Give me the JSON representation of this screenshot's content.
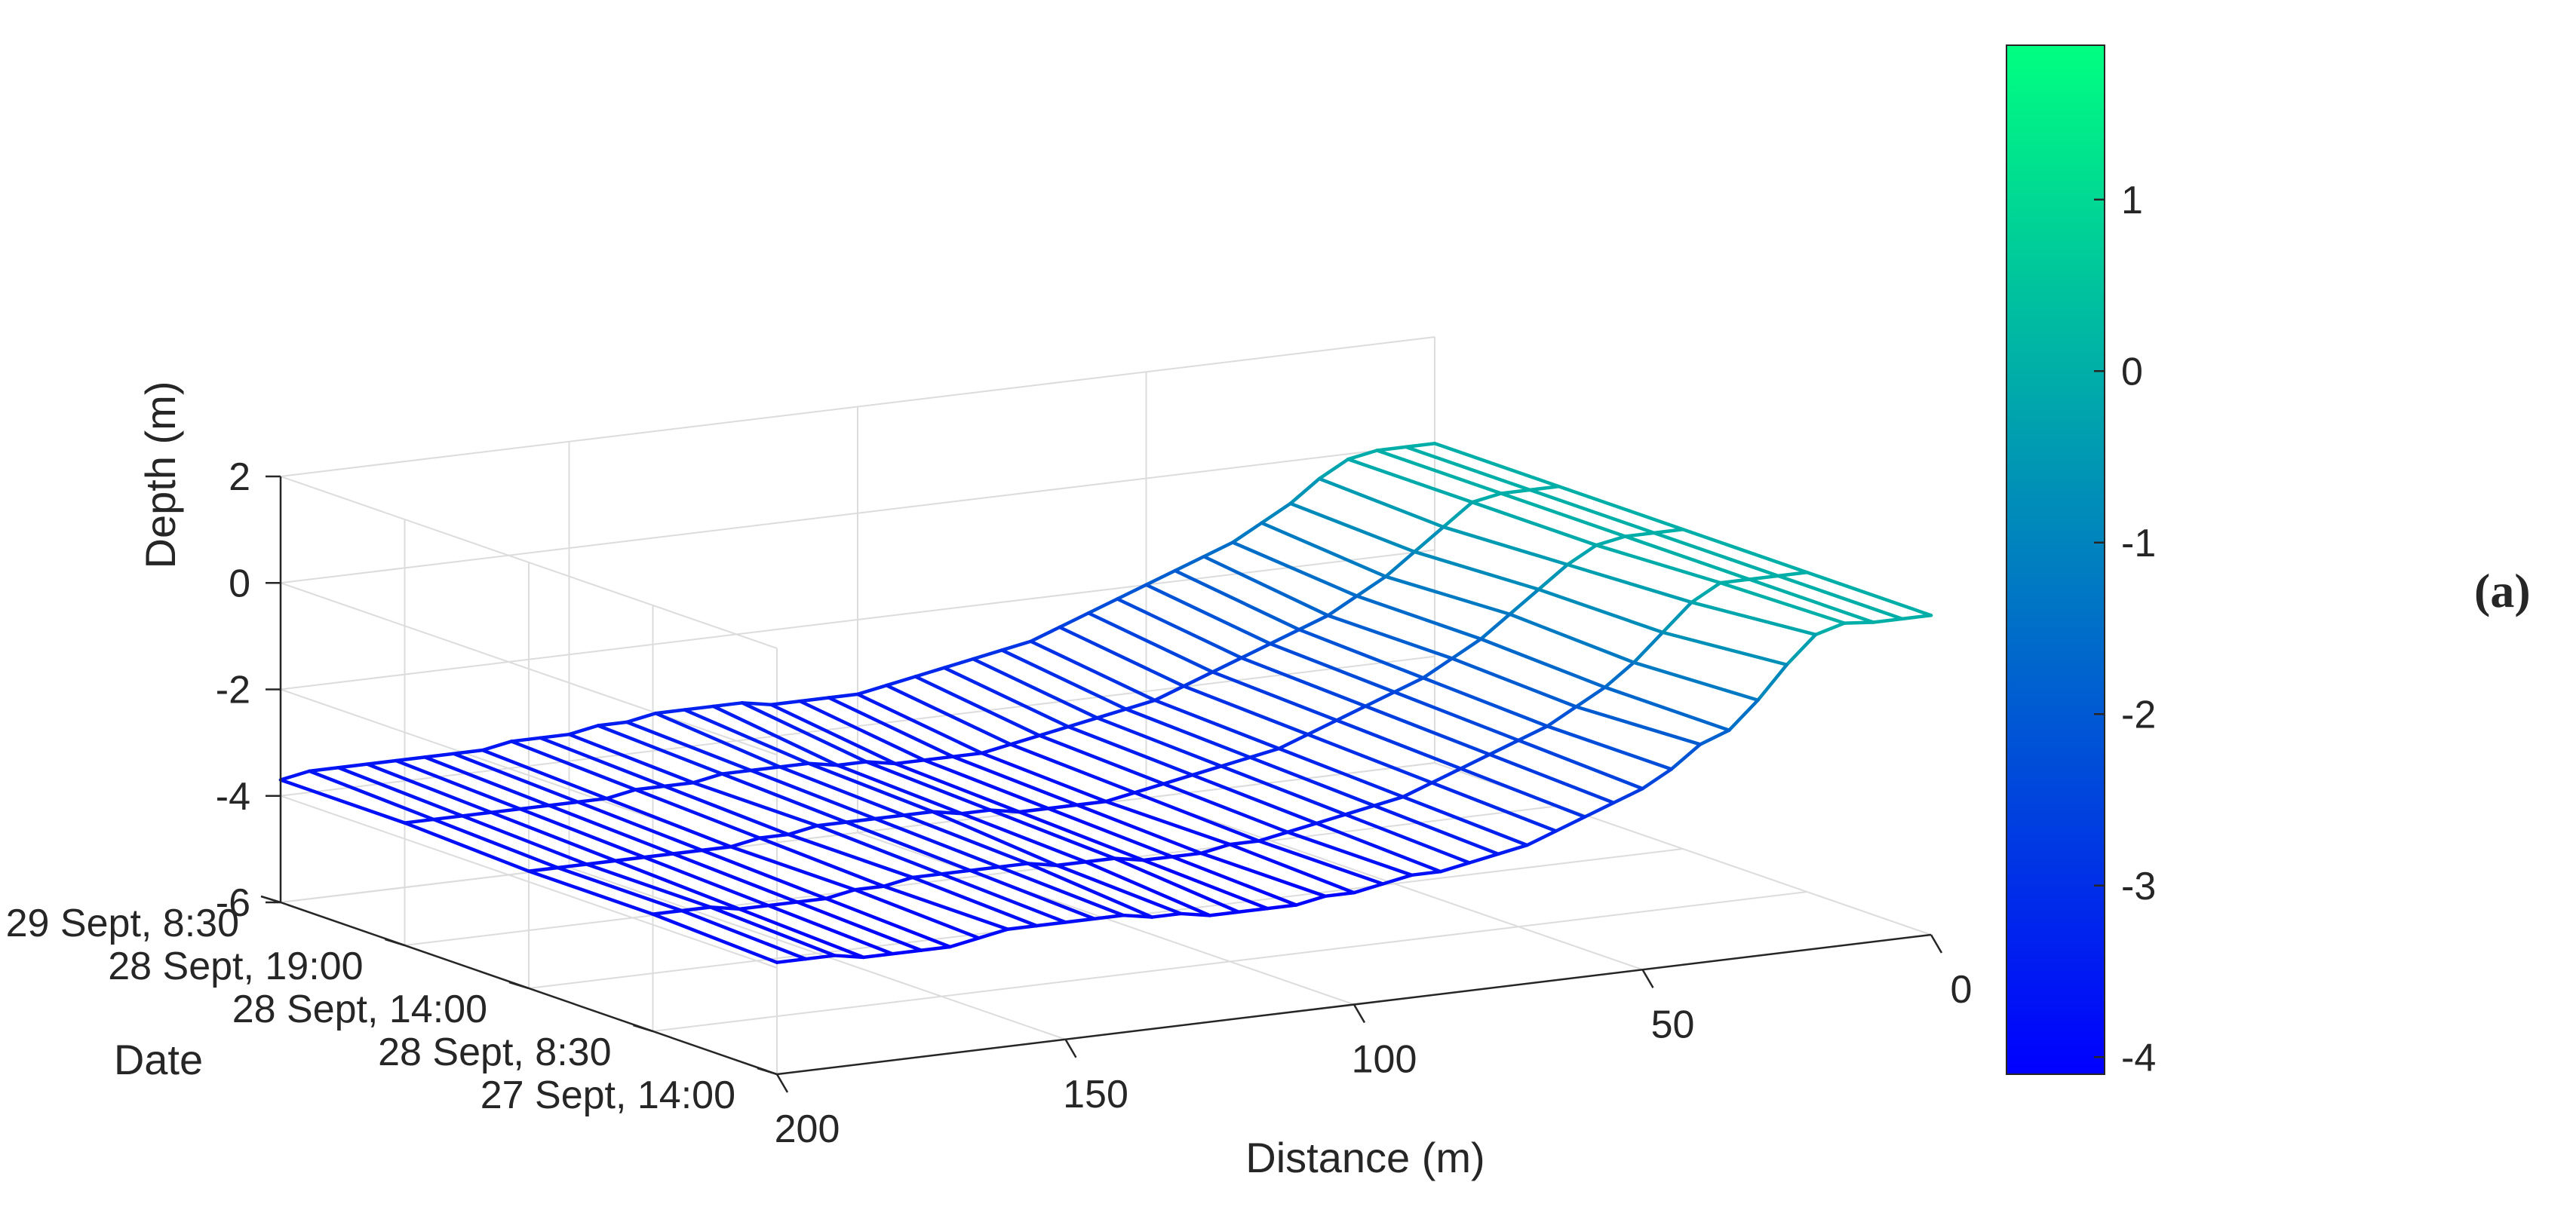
{
  "chart_data": {
    "type": "surface",
    "title": "",
    "panel_label": "(a)",
    "xlabel": "Distance (m)",
    "ylabel": "Date",
    "zlabel": "Depth (m)",
    "x_ticks": [
      "0",
      "50",
      "100",
      "150",
      "200"
    ],
    "x_tick_values": [
      0,
      50,
      100,
      150,
      200
    ],
    "y_ticks": [
      "27 Sept, 14:00",
      "28 Sept, 8:30",
      "28 Sept, 14:00",
      "28 Sept, 19:00",
      "29 Sept, 8:30"
    ],
    "z_ticks": [
      "-6",
      "-4",
      "-2",
      "0",
      "2"
    ],
    "z_tick_values": [
      -6,
      -4,
      -2,
      0,
      2
    ],
    "colorbar_ticks": [
      "-4",
      "-3",
      "-2",
      "-1",
      "0",
      "1"
    ],
    "colorbar_tick_values": [
      -4,
      -3,
      -2,
      -1,
      0,
      1
    ],
    "colormap": [
      "#0000ff",
      "#00ff80"
    ],
    "xlim": [
      0,
      200
    ],
    "zlim": [
      -6,
      2
    ],
    "clim": [
      -4.1,
      1.9
    ],
    "grid": true,
    "distance_m": [
      0,
      5,
      10,
      15,
      20,
      25,
      30,
      35,
      40,
      45,
      50,
      55,
      60,
      65,
      70,
      75,
      80,
      85,
      90,
      95,
      100,
      105,
      110,
      115,
      120,
      125,
      130,
      135,
      140,
      145,
      150,
      155,
      160,
      165,
      170,
      175,
      180,
      185,
      190,
      195,
      200
    ],
    "series": [
      {
        "name": "27 Sept, 14:00",
        "depth_m": [
          0.0,
          0.0,
          0.0,
          0.05,
          -0.1,
          -0.6,
          -1.2,
          -1.7,
          -1.9,
          -2.3,
          -2.6,
          -2.8,
          -3.0,
          -3.2,
          -3.4,
          -3.5,
          -3.6,
          -3.7,
          -3.7,
          -3.8,
          -3.9,
          -3.9,
          -4.0,
          -4.0,
          -4.0,
          -4.0,
          -3.9,
          -3.9,
          -3.8,
          -3.8,
          -3.8,
          -3.8,
          -3.8,
          -3.9,
          -4.0,
          -4.0,
          -4.0,
          -4.0,
          -3.9,
          -3.9,
          -3.9
        ]
      },
      {
        "name": "28 Sept, 8:30",
        "depth_m": [
          0.0,
          0.0,
          0.0,
          0.0,
          -0.3,
          -0.8,
          -1.3,
          -1.7,
          -2.0,
          -2.3,
          -2.5,
          -2.7,
          -2.9,
          -3.1,
          -3.3,
          -3.4,
          -3.5,
          -3.6,
          -3.7,
          -3.8,
          -3.8,
          -3.9,
          -3.9,
          -3.9,
          -3.8,
          -3.8,
          -3.8,
          -3.7,
          -3.7,
          -3.7,
          -3.7,
          -3.7,
          -3.8,
          -3.8,
          -3.9,
          -3.9,
          -3.9,
          -3.9,
          -3.8,
          -3.8,
          -3.8
        ]
      },
      {
        "name": "28 Sept, 14:00",
        "depth_m": [
          0.0,
          0.0,
          0.0,
          -0.1,
          -0.4,
          -0.8,
          -1.2,
          -1.6,
          -1.9,
          -2.2,
          -2.4,
          -2.6,
          -2.8,
          -3.0,
          -3.2,
          -3.3,
          -3.4,
          -3.5,
          -3.6,
          -3.7,
          -3.8,
          -3.8,
          -3.8,
          -3.8,
          -3.7,
          -3.7,
          -3.6,
          -3.6,
          -3.6,
          -3.6,
          -3.6,
          -3.7,
          -3.7,
          -3.8,
          -3.8,
          -3.8,
          -3.8,
          -3.8,
          -3.8,
          -3.8,
          -3.8
        ]
      },
      {
        "name": "28 Sept, 19:00",
        "depth_m": [
          0.0,
          0.0,
          0.0,
          -0.1,
          -0.5,
          -0.9,
          -1.3,
          -1.6,
          -1.9,
          -2.1,
          -2.3,
          -2.5,
          -2.7,
          -2.9,
          -3.1,
          -3.2,
          -3.3,
          -3.4,
          -3.5,
          -3.6,
          -3.7,
          -3.7,
          -3.7,
          -3.7,
          -3.6,
          -3.6,
          -3.5,
          -3.5,
          -3.5,
          -3.5,
          -3.6,
          -3.6,
          -3.6,
          -3.7,
          -3.7,
          -3.7,
          -3.7,
          -3.7,
          -3.7,
          -3.7,
          -3.7
        ]
      },
      {
        "name": "29 Sept, 8:30",
        "depth_m": [
          0.0,
          0.0,
          0.0,
          -0.1,
          -0.4,
          -0.8,
          -1.1,
          -1.4,
          -1.6,
          -1.8,
          -2.0,
          -2.2,
          -2.4,
          -2.6,
          -2.8,
          -2.9,
          -3.0,
          -3.1,
          -3.2,
          -3.3,
          -3.4,
          -3.4,
          -3.4,
          -3.4,
          -3.3,
          -3.3,
          -3.3,
          -3.3,
          -3.4,
          -3.4,
          -3.5,
          -3.5,
          -3.5,
          -3.6,
          -3.6,
          -3.6,
          -3.6,
          -3.6,
          -3.6,
          -3.6,
          -3.7
        ]
      }
    ]
  }
}
